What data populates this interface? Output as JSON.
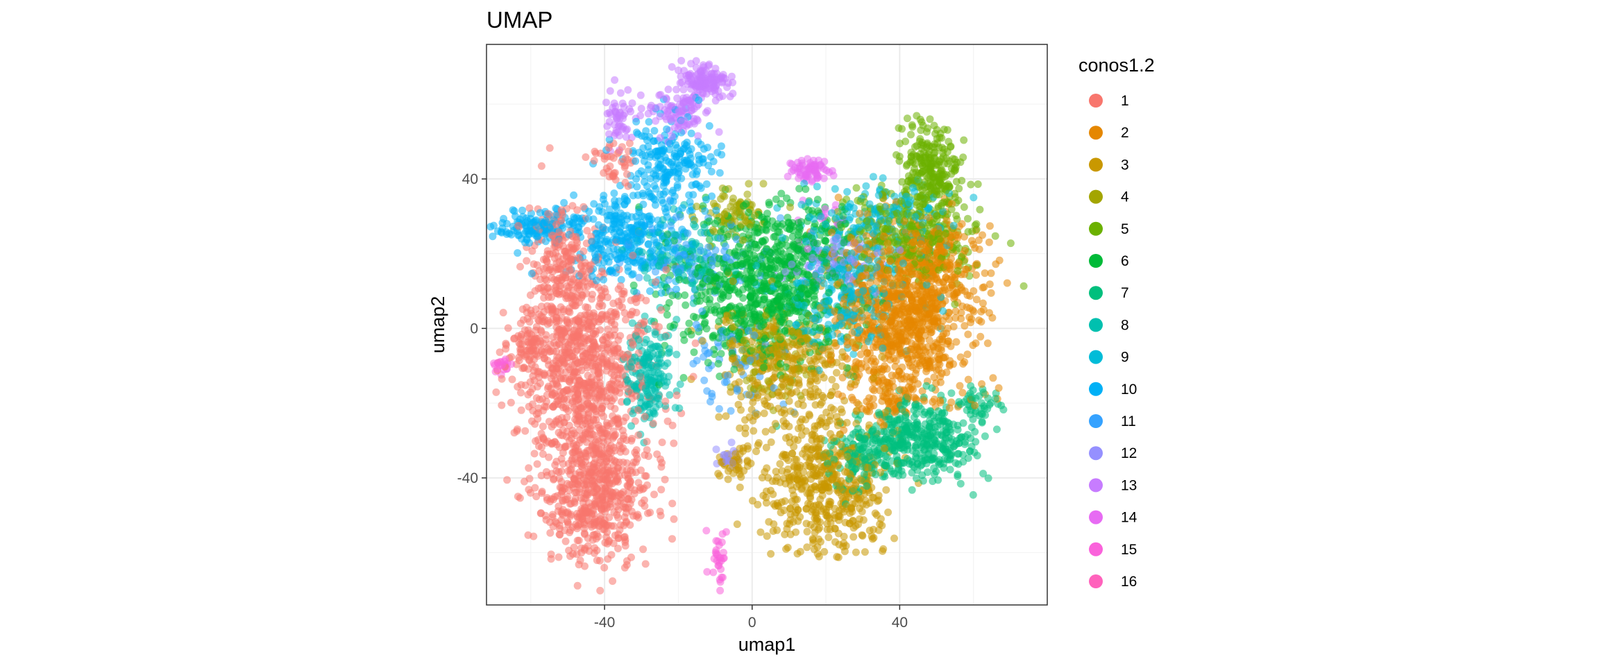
{
  "chart_data": {
    "type": "scatter",
    "title": "UMAP",
    "xlabel": "umap1",
    "ylabel": "umap2",
    "xlim": [
      -72,
      80
    ],
    "ylim": [
      -74,
      76
    ],
    "x_ticks": [
      -40,
      0,
      40
    ],
    "y_ticks": [
      -40,
      0,
      40
    ],
    "grid": true,
    "legend": {
      "title": "conos1.2",
      "position": "right"
    },
    "series": [
      {
        "name": "1",
        "color": "#F8766D",
        "clusters": [
          {
            "cx": -46,
            "cy": -12,
            "sx": 9,
            "sy": 14,
            "n": 900
          },
          {
            "cx": -42,
            "cy": -45,
            "sx": 7,
            "sy": 9,
            "n": 500
          },
          {
            "cx": -52,
            "cy": 18,
            "sx": 5,
            "sy": 8,
            "n": 200
          },
          {
            "cx": -60,
            "cy": -3,
            "sx": 3,
            "sy": 3,
            "n": 60
          },
          {
            "cx": -38,
            "cy": 45,
            "sx": 3,
            "sy": 3,
            "n": 40
          }
        ]
      },
      {
        "name": "2",
        "color": "#E58700",
        "clusters": [
          {
            "cx": 42,
            "cy": 4,
            "sx": 9,
            "sy": 11,
            "n": 900
          },
          {
            "cx": 52,
            "cy": 20,
            "sx": 5,
            "sy": 5,
            "n": 120
          },
          {
            "cx": 36,
            "cy": -18,
            "sx": 6,
            "sy": 4,
            "n": 80
          }
        ]
      },
      {
        "name": "3",
        "color": "#C99800",
        "clusters": [
          {
            "cx": 20,
            "cy": -42,
            "sx": 8,
            "sy": 9,
            "n": 500
          },
          {
            "cx": 10,
            "cy": -10,
            "sx": 10,
            "sy": 9,
            "n": 350
          },
          {
            "cx": -5,
            "cy": -36,
            "sx": 2,
            "sy": 3,
            "n": 40
          }
        ]
      },
      {
        "name": "4",
        "color": "#A3A500",
        "clusters": [
          {
            "cx": -5,
            "cy": 30,
            "sx": 4,
            "sy": 3,
            "n": 80
          },
          {
            "cx": 5,
            "cy": -5,
            "sx": 6,
            "sy": 6,
            "n": 100
          }
        ]
      },
      {
        "name": "5",
        "color": "#6BB100",
        "clusters": [
          {
            "cx": 48,
            "cy": 42,
            "sx": 4,
            "sy": 6,
            "n": 250
          },
          {
            "cx": 45,
            "cy": 25,
            "sx": 9,
            "sy": 6,
            "n": 300
          }
        ]
      },
      {
        "name": "6",
        "color": "#00BA38",
        "clusters": [
          {
            "cx": 2,
            "cy": 10,
            "sx": 12,
            "sy": 9,
            "n": 700
          },
          {
            "cx": 10,
            "cy": 25,
            "sx": 8,
            "sy": 5,
            "n": 150
          }
        ]
      },
      {
        "name": "7",
        "color": "#00BF7D",
        "clusters": [
          {
            "cx": 45,
            "cy": -30,
            "sx": 8,
            "sy": 5,
            "n": 400
          },
          {
            "cx": 62,
            "cy": -20,
            "sx": 3,
            "sy": 2,
            "n": 40
          },
          {
            "cx": 28,
            "cy": -35,
            "sx": 5,
            "sy": 4,
            "n": 100
          }
        ]
      },
      {
        "name": "8",
        "color": "#00C0AF",
        "clusters": [
          {
            "cx": -28,
            "cy": -12,
            "sx": 3,
            "sy": 7,
            "n": 180
          },
          {
            "cx": -20,
            "cy": 20,
            "sx": 6,
            "sy": 5,
            "n": 100
          }
        ]
      },
      {
        "name": "9",
        "color": "#00BCD8",
        "clusters": [
          {
            "cx": 25,
            "cy": 10,
            "sx": 9,
            "sy": 8,
            "n": 250
          },
          {
            "cx": 35,
            "cy": 30,
            "sx": 10,
            "sy": 5,
            "n": 150
          }
        ]
      },
      {
        "name": "10",
        "color": "#00B0F6",
        "clusters": [
          {
            "cx": -58,
            "cy": 27,
            "sx": 5,
            "sy": 2,
            "n": 120
          },
          {
            "cx": -35,
            "cy": 25,
            "sx": 8,
            "sy": 6,
            "n": 300
          },
          {
            "cx": -22,
            "cy": 45,
            "sx": 6,
            "sy": 6,
            "n": 200
          }
        ]
      },
      {
        "name": "11",
        "color": "#35A2FF",
        "clusters": [
          {
            "cx": -15,
            "cy": 20,
            "sx": 10,
            "sy": 5,
            "n": 100
          },
          {
            "cx": -5,
            "cy": -10,
            "sx": 6,
            "sy": 6,
            "n": 60
          }
        ]
      },
      {
        "name": "12",
        "color": "#9590FF",
        "clusters": [
          {
            "cx": 22,
            "cy": 18,
            "sx": 6,
            "sy": 4,
            "n": 80
          },
          {
            "cx": -6,
            "cy": -35,
            "sx": 2,
            "sy": 2,
            "n": 20
          }
        ]
      },
      {
        "name": "13",
        "color": "#C77CFF",
        "clusters": [
          {
            "cx": -13,
            "cy": 66,
            "sx": 3,
            "sy": 2,
            "n": 120
          },
          {
            "cx": -20,
            "cy": 58,
            "sx": 4,
            "sy": 3,
            "n": 100
          },
          {
            "cx": -36,
            "cy": 56,
            "sx": 2,
            "sy": 4,
            "n": 50
          }
        ]
      },
      {
        "name": "14",
        "color": "#E76BF3",
        "clusters": [
          {
            "cx": 16,
            "cy": 42,
            "sx": 2.5,
            "sy": 1.5,
            "n": 70
          },
          {
            "cx": 20,
            "cy": 28,
            "sx": 5,
            "sy": 4,
            "n": 15
          }
        ]
      },
      {
        "name": "15",
        "color": "#FA62DB",
        "clusters": [
          {
            "cx": -9,
            "cy": -62,
            "sx": 1.5,
            "sy": 4,
            "n": 30
          },
          {
            "cx": -68,
            "cy": -10,
            "sx": 1.5,
            "sy": 1,
            "n": 20
          }
        ]
      },
      {
        "name": "16",
        "color": "#FF62BC",
        "clusters": []
      }
    ]
  }
}
